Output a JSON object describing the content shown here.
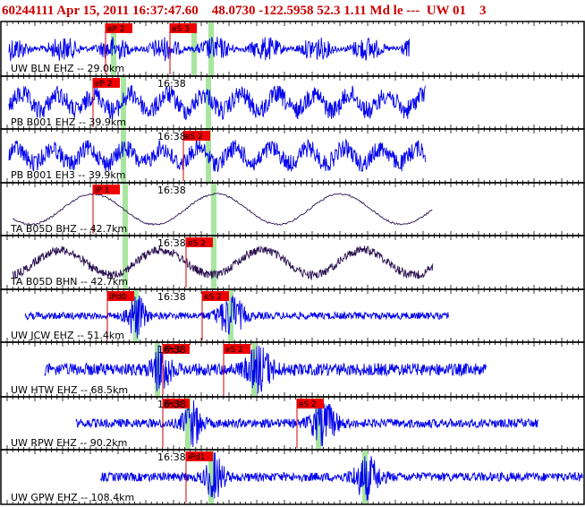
{
  "header": {
    "text": "60244111 Apr 15, 2011 16:37:47.60    48.0730 -122.5958 52.3 1.11 Md le ---  UW 01    3"
  },
  "colors": {
    "header": "#cc0000",
    "blue_trace": "#0000ee",
    "dark_trace": "#2a1050",
    "pick_box": "#ee0000",
    "window": "#a8e6a0",
    "pick_line": "#cc0000"
  },
  "panels": [
    {
      "label": "UW BLN EHZ -- 29.0km",
      "trace_color": "blue",
      "pick": "eP 2",
      "pick2": "eS 3",
      "time": "",
      "show_time": false
    },
    {
      "label": "PB B001 EHZ -- 39.9km",
      "trace_color": "blue",
      "pick": "eP 2",
      "pick2": "",
      "time": "16:38",
      "show_time": true
    },
    {
      "label": "PB B001 EH3 -- 39.9km",
      "trace_color": "blue",
      "pick": "",
      "pick2": "eS 2",
      "time": "16:38",
      "show_time": true
    },
    {
      "label": "TA B05D BHZ -- 42.7km",
      "trace_color": "dark",
      "pick": "iP 1",
      "pick2": "",
      "time": "16:38",
      "show_time": true
    },
    {
      "label": "TA B05D BHN -- 42.7km",
      "trace_color": "dark",
      "pick": "",
      "pick2": "eS 2",
      "time": "16:38",
      "show_time": true
    },
    {
      "label": "UW JCW EHZ -- 51.4km",
      "trace_color": "blue",
      "pick": "iPd0",
      "pick2": "eS 2",
      "time": "16:38",
      "show_time": true
    },
    {
      "label": "UW HTW EHZ -- 68.5km",
      "trace_color": "blue",
      "pick": "iPc1",
      "pick2": "eS 2",
      "time": "16:38",
      "show_time": true
    },
    {
      "label": "UW RPW EHZ -- 90.2km",
      "trace_color": "blue",
      "pick": "iPc1",
      "pick2": "eS 2",
      "time": "16:38",
      "show_time": true
    },
    {
      "label": "UW GPW EHZ -- 108.4km",
      "trace_color": "blue",
      "pick": "iPd1",
      "pick2": "",
      "time": "16:38",
      "show_time": true
    }
  ]
}
